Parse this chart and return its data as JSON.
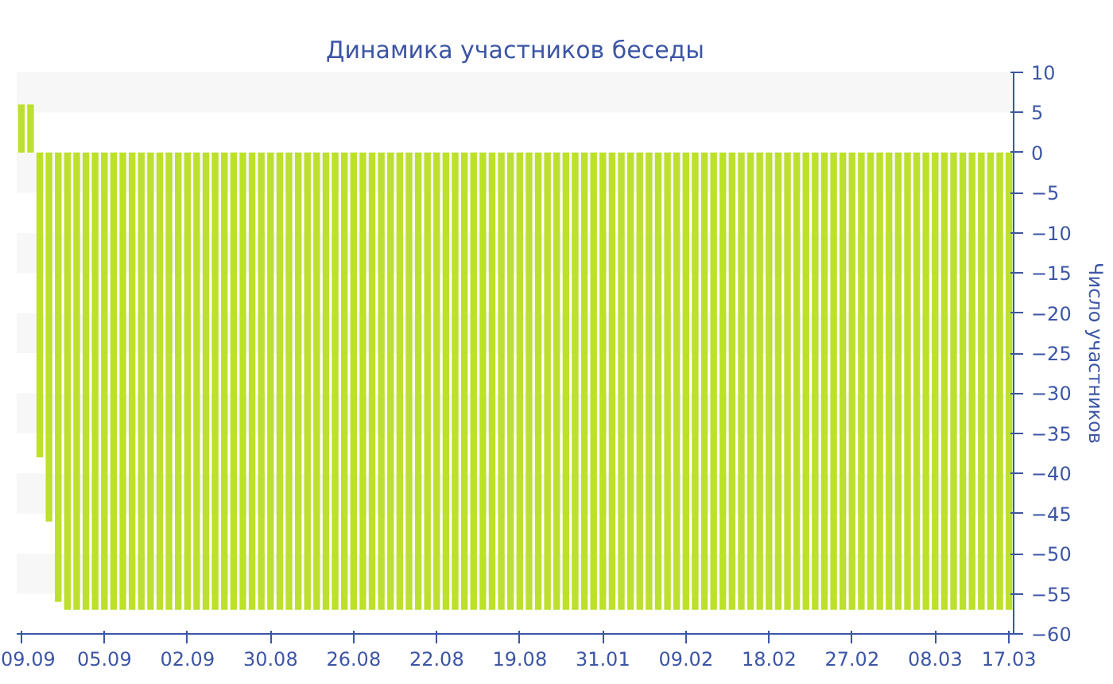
{
  "chart_data": {
    "type": "bar",
    "title": "Динамика участников беседы",
    "ylabel": "Число участников",
    "categories": [
      "09.09",
      null,
      null,
      null,
      null,
      null,
      null,
      null,
      null,
      "05.09",
      null,
      null,
      null,
      null,
      null,
      null,
      null,
      null,
      "02.09",
      null,
      null,
      null,
      null,
      null,
      null,
      null,
      null,
      "30.08",
      null,
      null,
      null,
      null,
      null,
      null,
      null,
      null,
      "26.08",
      null,
      null,
      null,
      null,
      null,
      null,
      null,
      null,
      "22.08",
      null,
      null,
      null,
      null,
      null,
      null,
      null,
      null,
      "19.08",
      null,
      null,
      null,
      null,
      null,
      null,
      null,
      null,
      "31.01",
      null,
      null,
      null,
      null,
      null,
      null,
      null,
      null,
      "09.02",
      null,
      null,
      null,
      null,
      null,
      null,
      null,
      null,
      "18.02",
      null,
      null,
      null,
      null,
      null,
      null,
      null,
      null,
      "27.02",
      null,
      null,
      null,
      null,
      null,
      null,
      null,
      null,
      "08.03",
      null,
      null,
      null,
      null,
      null,
      null,
      null,
      "17.03"
    ],
    "values": [
      6,
      6,
      -38,
      -46,
      -56,
      -57,
      -57,
      -57,
      -57,
      -57,
      -57,
      -57,
      -57,
      -57,
      -57,
      -57,
      -57,
      -57,
      -57,
      -57,
      -57,
      -57,
      -57,
      -57,
      -57,
      -57,
      -57,
      -57,
      -57,
      -57,
      -57,
      -57,
      -57,
      -57,
      -57,
      -57,
      -57,
      -57,
      -57,
      -57,
      -57,
      -57,
      -57,
      -57,
      -57,
      -57,
      -57,
      -57,
      -57,
      -57,
      -57,
      -57,
      -57,
      -57,
      -57,
      -57,
      -57,
      -57,
      -57,
      -57,
      -57,
      -57,
      -57,
      -57,
      -57,
      -57,
      -57,
      -57,
      -57,
      -57,
      -57,
      -57,
      -57,
      -57,
      -57,
      -57,
      -57,
      -57,
      -57,
      -57,
      -57,
      -57,
      -57,
      -57,
      -57,
      -57,
      -57,
      -57,
      -57,
      -57,
      -57,
      -57,
      -57,
      -57,
      -57,
      -57,
      -57,
      -57,
      -57,
      -57,
      -57,
      -57,
      -57,
      -57,
      -57,
      -57,
      -57,
      -57
    ],
    "color": "#bde02c",
    "ylim": [
      -60,
      10
    ],
    "yticks": [
      10,
      5,
      0,
      -5,
      -10,
      -15,
      -20,
      -25,
      -30,
      -35,
      -40,
      -45,
      -50,
      -55,
      -60
    ],
    "bands": [
      {
        "axis": "y",
        "from": 5,
        "to": 10,
        "color": "#f7f7f7"
      },
      {
        "axis": "y",
        "from": -5,
        "to": 0,
        "color": "#f7f7f7"
      },
      {
        "axis": "y",
        "from": -15,
        "to": -10,
        "color": "#f7f7f7"
      },
      {
        "axis": "y",
        "from": -25,
        "to": -20,
        "color": "#f7f7f7"
      },
      {
        "axis": "y",
        "from": -35,
        "to": -30,
        "color": "#f7f7f7"
      },
      {
        "axis": "y",
        "from": -45,
        "to": -40,
        "color": "#f7f7f7"
      },
      {
        "axis": "y",
        "from": -55,
        "to": -50,
        "color": "#f7f7f7"
      }
    ],
    "grid": false
  }
}
